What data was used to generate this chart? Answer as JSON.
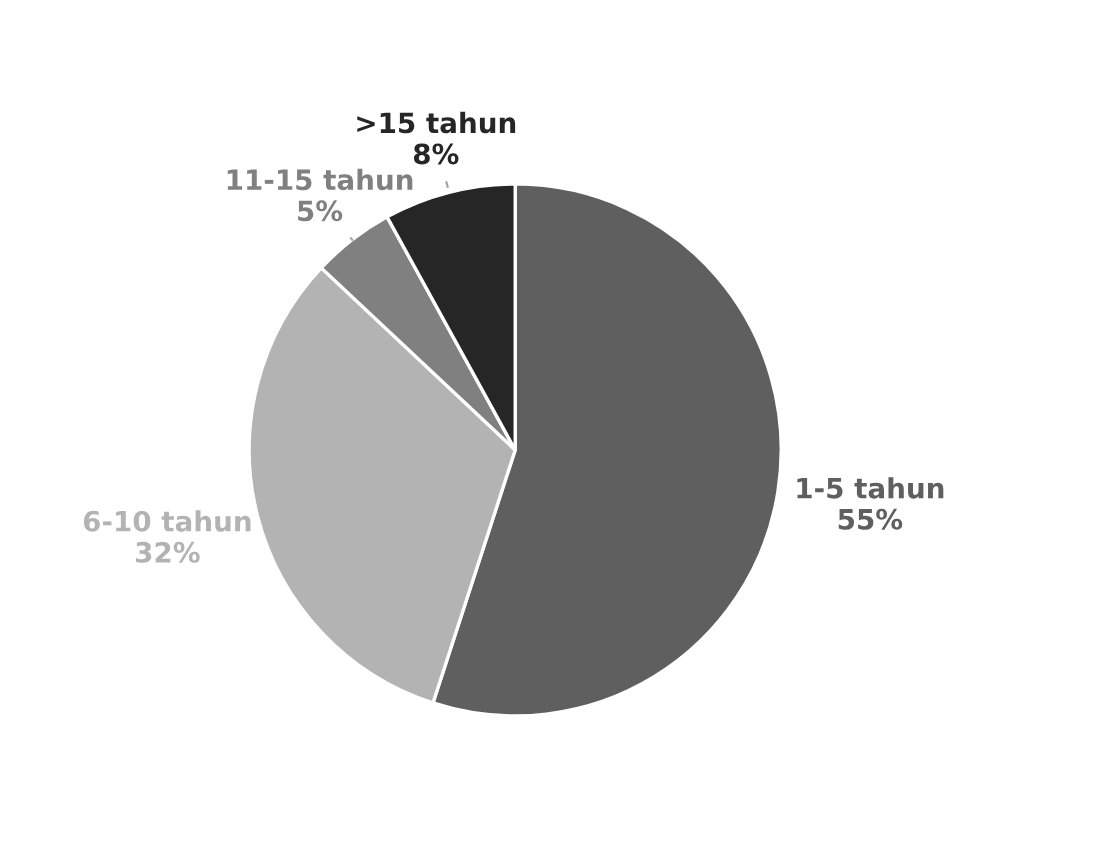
{
  "chart_data": {
    "type": "pie",
    "categories": [
      "1-5 tahun",
      "6-10 tahun",
      "11-15 tahun",
      ">15 tahun"
    ],
    "values": [
      55,
      32,
      5,
      8
    ],
    "colors": [
      "#5f5f5f",
      "#b3b3b3",
      "#808080",
      "#262626"
    ],
    "value_labels": [
      "55%",
      "32%",
      "5%",
      "8%"
    ]
  }
}
